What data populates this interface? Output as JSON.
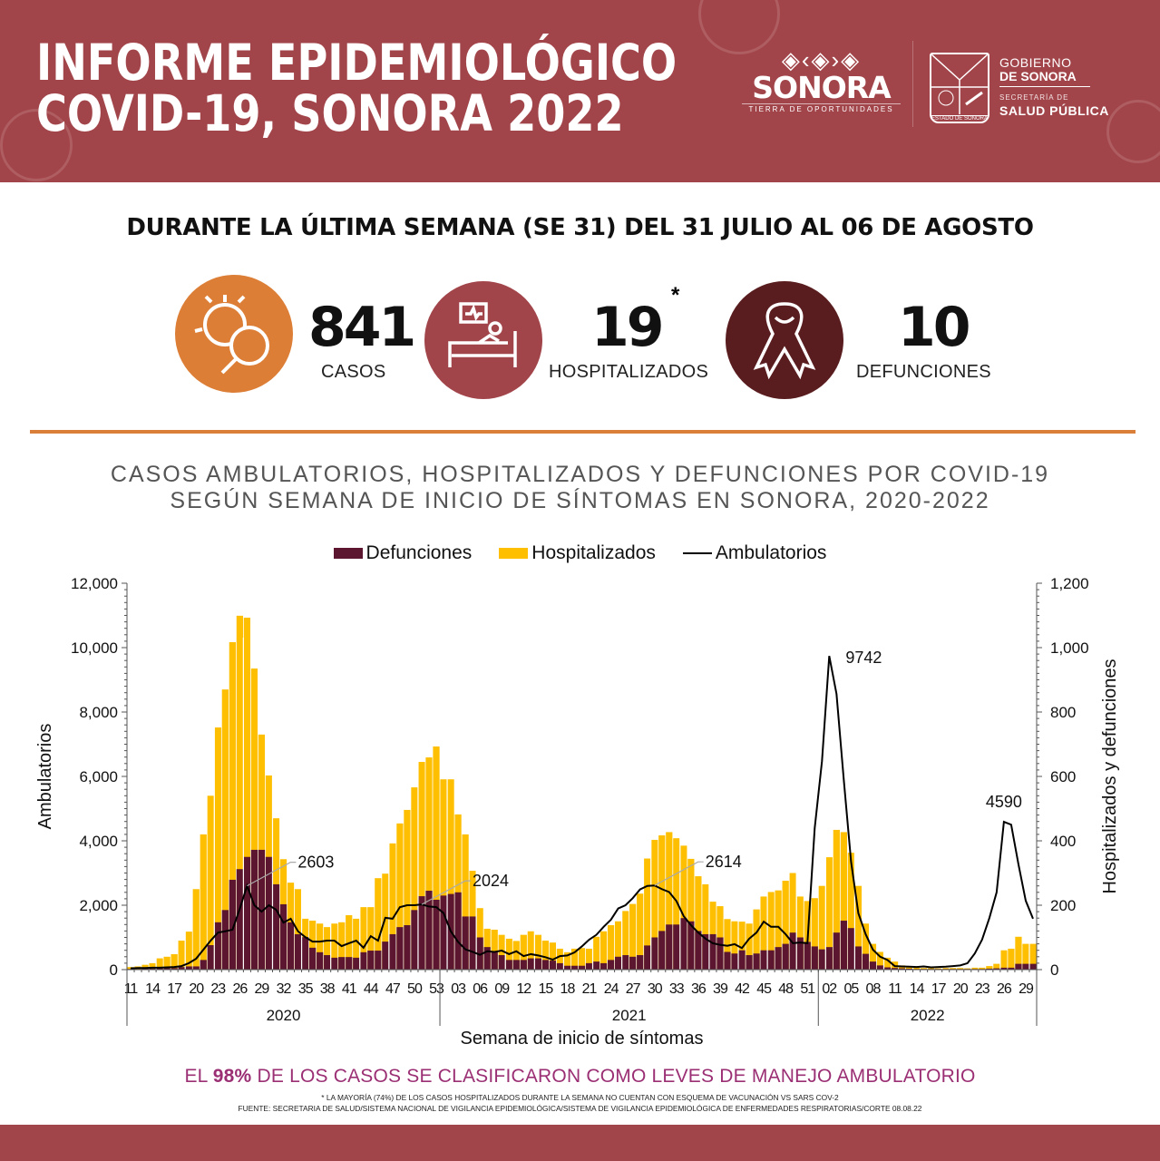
{
  "header": {
    "title_line1": "INFORME EPIDEMIOLÓGICO",
    "title_line2": "COVID-19, SONORA 2022",
    "logo_sonora": {
      "word": "SONORA",
      "tagline": "TIERRA DE OPORTUNIDADES"
    },
    "shield_caption": "ESTADO DE SONORA",
    "gov": {
      "line1": "GOBIERNO",
      "line2": "DE SONORA",
      "line3": "SECRETARÍA DE",
      "line4": "SALUD PÚBLICA"
    }
  },
  "week_banner": "DURANTE LA ÚLTIMA SEMANA (SE 31) DEL 31 JULIO AL 06 DE AGOSTO",
  "stats": [
    {
      "icon": "virus-search-icon",
      "value": "841",
      "label": "CASOS",
      "color": "#dc7e36"
    },
    {
      "icon": "hospital-bed-icon",
      "value": "19",
      "asterisk": "*",
      "label": "HOSPITALIZADOS",
      "color": "#a2454a"
    },
    {
      "icon": "ribbon-icon",
      "value": "10",
      "label": "DEFUNCIONES",
      "color": "#5a1d1f"
    }
  ],
  "colors": {
    "header": "#a2454a",
    "defunciones": "#5c1630",
    "hospitalizados": "#fdbf00",
    "ambulatorios": "#000000",
    "accent_rule": "#d97f3a",
    "footer_text": "#9b2f74"
  },
  "chart_data": {
    "type": "bar",
    "title_line1": "CASOS AMBULATORIOS, HOSPITALIZADOS Y DEFUNCIONES POR COVID-19",
    "title_line2": "SEGÚN SEMANA DE INICIO DE SÍNTOMAS EN SONORA, 2020-2022",
    "legend": [
      "Defunciones",
      "Hospitalizados",
      "Ambulatorios"
    ],
    "legend_position": "top-center",
    "xlabel": "Semana de inicio de síntomas",
    "ylabel_left": "Ambulatorios",
    "ylabel_right": "Hospitalizados y defunciones",
    "ylim_left": [
      0,
      12000
    ],
    "ylim_right": [
      0,
      1200
    ],
    "yticks_left": [
      "0",
      "2,000",
      "4,000",
      "6,000",
      "8,000",
      "10,000",
      "12,000"
    ],
    "yticks_right": [
      "0",
      "200",
      "400",
      "600",
      "800",
      "1,000",
      "1,200"
    ],
    "years": [
      {
        "year": "2020",
        "first_week": 11,
        "tick_labels": [
          "11",
          "14",
          "17",
          "20",
          "23",
          "26",
          "29",
          "32",
          "35",
          "38",
          "41",
          "44",
          "47",
          "50",
          "53"
        ],
        "hospitalizados": [
          8,
          10,
          15,
          20,
          35,
          40,
          48,
          90,
          118,
          250,
          420,
          540,
          752,
          870,
          1017,
          1099,
          1093,
          935,
          730,
          603,
          470,
          343,
          270,
          250,
          158,
          152,
          143,
          132,
          143,
          147,
          169,
          158,
          194,
          194,
          284,
          298,
          392,
          454,
          496,
          566,
          645,
          659,
          693
        ],
        "defunciones": [
          2,
          2,
          3,
          3,
          4,
          5,
          5,
          8,
          10,
          10,
          30,
          76,
          147,
          185,
          279,
          312,
          350,
          372,
          372,
          350,
          265,
          203,
          147,
          110,
          101,
          68,
          54,
          45,
          37,
          39,
          39,
          37,
          54,
          59,
          59,
          87,
          110,
          132,
          138,
          185,
          228,
          245,
          217
        ],
        "ambulatorios": [
          40,
          50,
          50,
          60,
          60,
          70,
          80,
          110,
          200,
          340,
          620,
          900,
          1150,
          1190,
          1240,
          1890,
          2603,
          2000,
          1800,
          2000,
          1860,
          1460,
          1580,
          1190,
          1010,
          870,
          870,
          900,
          900,
          730,
          820,
          900,
          680,
          1040,
          900,
          1610,
          1580,
          1940,
          2000,
          2000,
          2024,
          1960,
          1940
        ]
      },
      {
        "year": "2021",
        "first_week": 1,
        "tick_labels": [
          "03",
          "06",
          "09",
          "12",
          "15",
          "18",
          "21",
          "24",
          "27",
          "30",
          "33",
          "36",
          "39",
          "42",
          "45",
          "48",
          "51"
        ],
        "hospitalizados": [
          591,
          591,
          482,
          420,
          307,
          191,
          127,
          124,
          108,
          96,
          89,
          108,
          119,
          108,
          90,
          84,
          65,
          54,
          65,
          67,
          65,
          102,
          119,
          138,
          150,
          182,
          204,
          236,
          345,
          403,
          417,
          427,
          408,
          385,
          344,
          290,
          265,
          211,
          197,
          157,
          150,
          149,
          143,
          187,
          227,
          241,
          246,
          276,
          300,
          227,
          213,
          222
        ],
        "defunciones": [
          230,
          235,
          240,
          165,
          165,
          100,
          70,
          55,
          45,
          30,
          30,
          30,
          35,
          35,
          30,
          28,
          20,
          12,
          12,
          12,
          20,
          25,
          20,
          30,
          40,
          45,
          40,
          45,
          75,
          100,
          120,
          140,
          140,
          160,
          150,
          120,
          110,
          110,
          100,
          55,
          50,
          60,
          45,
          50,
          60,
          60,
          70,
          80,
          115,
          100,
          86,
          72
        ],
        "ambulatorios": [
          1756,
          1190,
          860,
          630,
          550,
          460,
          570,
          550,
          590,
          480,
          570,
          420,
          480,
          440,
          385,
          310,
          420,
          440,
          535,
          720,
          930,
          1080,
          1330,
          1550,
          1900,
          2000,
          2220,
          2490,
          2600,
          2614,
          2500,
          2410,
          2130,
          1660,
          1380,
          1150,
          960,
          820,
          770,
          740,
          790,
          670,
          960,
          1150,
          1490,
          1330,
          1330,
          1100,
          820,
          840,
          820,
          4390
        ]
      },
      {
        "year": "2022",
        "first_week": 1,
        "tick_labels": [
          "02",
          "05",
          "08",
          "11",
          "14",
          "17",
          "20",
          "23",
          "26",
          "29"
        ],
        "hospitalizados": [
          260,
          349,
          434,
          427,
          363,
          260,
          143,
          80,
          55,
          37,
          25,
          13,
          9,
          6,
          5,
          5,
          4,
          5,
          5,
          5,
          4,
          6,
          6,
          11,
          18,
          60,
          65,
          102,
          80,
          80
        ],
        "defunciones": [
          63,
          70,
          115,
          152,
          129,
          72,
          49,
          25,
          13,
          7,
          5,
          4,
          3,
          2,
          2,
          2,
          2,
          2,
          2,
          2,
          2,
          2,
          2,
          3,
          4,
          6,
          6,
          18,
          18,
          18
        ],
        "ambulatorios": [
          6470,
          9742,
          8560,
          5890,
          3350,
          1750,
          1100,
          620,
          400,
          300,
          110,
          100,
          90,
          80,
          100,
          70,
          80,
          90,
          110,
          130,
          200,
          500,
          930,
          1600,
          2400,
          4590,
          4500,
          3270,
          2140,
          1580
        ]
      }
    ],
    "annotations": [
      {
        "year_index": 0,
        "week_index": 16,
        "text": "2603"
      },
      {
        "year_index": 0,
        "week_index": 40,
        "text": "2024"
      },
      {
        "year_index": 1,
        "week_index": 29,
        "text": "2614"
      },
      {
        "year_index": 2,
        "week_index": 1,
        "text": "9742"
      },
      {
        "year_index": 2,
        "week_index": 25,
        "text": "4590"
      }
    ]
  },
  "footer": {
    "pre": "EL ",
    "highlight": "98%",
    "post": " DE LOS CASOS SE CLASIFICARON COMO LEVES DE  MANEJO AMBULATORIO",
    "note": "* LA MAYORÍA (74%) DE LOS CASOS HOSPITALIZADOS DURANTE LA SEMANA NO CUENTAN CON ESQUEMA DE VACUNACIÓN VS SARS COV-2",
    "source": "FUENTE: SECRETARIA DE SALUD/SISTEMA NACIONAL DE VIGILANCIA EPIDEMIOLÓGICA/SISTEMA DE VIGILANCIA EPIDEMIOLÓGICA DE ENFERMEDADES RESPIRATORIAS/CORTE 08.08.22"
  }
}
